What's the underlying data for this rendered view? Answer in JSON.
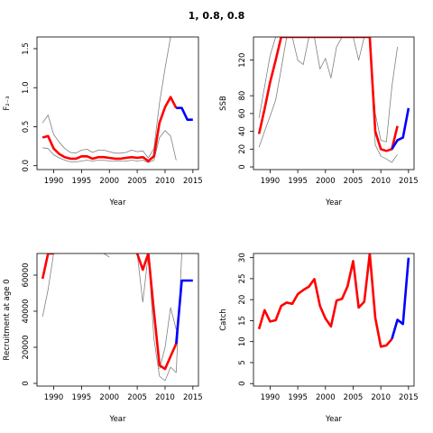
{
  "figure_title": "1, 0.8, 0.8",
  "colors": {
    "primary": "#ff0000",
    "projection": "#0000ff",
    "bounds": "#808080",
    "axis": "#000000"
  },
  "chart_data": [
    {
      "type": "line",
      "xlabel": "Year",
      "ylabel": "F₂₋₃",
      "xlim": [
        1987,
        2016
      ],
      "ylim": [
        -0.05,
        1.65
      ],
      "xticks": [
        1990,
        1995,
        2000,
        2005,
        2010,
        2015
      ],
      "yticks": [
        0.0,
        0.5,
        1.0,
        1.5
      ],
      "ytick_labels": [
        "0.0",
        "0.5",
        "1.0",
        "1.5"
      ],
      "series": [
        {
          "role": "upper",
          "color": "#808080",
          "x": [
            1988,
            1989,
            1990,
            1991,
            1992,
            1993,
            1994,
            1995,
            1996,
            1997,
            1998,
            1999,
            2000,
            2001,
            2002,
            2003,
            2004,
            2005,
            2006,
            2007,
            2008,
            2009,
            2010,
            2011
          ],
          "y": [
            0.55,
            0.65,
            0.4,
            0.3,
            0.22,
            0.17,
            0.16,
            0.2,
            0.21,
            0.17,
            0.2,
            0.2,
            0.18,
            0.16,
            0.16,
            0.17,
            0.2,
            0.18,
            0.19,
            0.1,
            0.22,
            0.8,
            1.25,
            1.65
          ]
        },
        {
          "role": "lower",
          "color": "#808080",
          "x": [
            1988,
            1989,
            1990,
            1991,
            1992,
            1993,
            1994,
            1995,
            1996,
            1997,
            1998,
            1999,
            2000,
            2001,
            2002,
            2003,
            2004,
            2005,
            2006,
            2007,
            2008,
            2009,
            2010,
            2011,
            2012
          ],
          "y": [
            0.23,
            0.22,
            0.14,
            0.1,
            0.07,
            0.05,
            0.05,
            0.06,
            0.07,
            0.06,
            0.07,
            0.07,
            0.06,
            0.06,
            0.06,
            0.06,
            0.07,
            0.06,
            0.07,
            0.04,
            0.07,
            0.36,
            0.45,
            0.38,
            0.07
          ]
        },
        {
          "role": "estimate",
          "color": "#ff0000",
          "x": [
            1988,
            1989,
            1990,
            1991,
            1992,
            1993,
            1994,
            1995,
            1996,
            1997,
            1998,
            1999,
            2000,
            2001,
            2002,
            2003,
            2004,
            2005,
            2006,
            2007,
            2008,
            2009,
            2010,
            2011,
            2012
          ],
          "y": [
            0.36,
            0.38,
            0.22,
            0.15,
            0.11,
            0.09,
            0.09,
            0.12,
            0.12,
            0.09,
            0.11,
            0.11,
            0.1,
            0.09,
            0.09,
            0.1,
            0.11,
            0.1,
            0.11,
            0.06,
            0.12,
            0.55,
            0.75,
            0.88,
            0.74
          ]
        },
        {
          "role": "projection",
          "color": "#0000ff",
          "x": [
            2012,
            2013,
            2014,
            2015
          ],
          "y": [
            0.74,
            0.74,
            0.59,
            0.59
          ]
        }
      ]
    },
    {
      "type": "line",
      "xlabel": "Year",
      "ylabel": "SSB",
      "xlim": [
        1987,
        2016
      ],
      "ylim": [
        -3,
        146
      ],
      "xticks": [
        1990,
        1995,
        2000,
        2005,
        2010,
        2015
      ],
      "yticks": [
        0,
        20,
        40,
        60,
        80,
        120
      ],
      "ytick_labels": [
        "0",
        "20",
        "40",
        "60",
        "80",
        "120"
      ],
      "series": [
        {
          "role": "upper",
          "color": "#808080",
          "x": [
            1988,
            1989,
            1990,
            1991,
            1992,
            1993,
            1994,
            1995,
            1996,
            1997,
            1998,
            1999,
            2000,
            2001,
            2002,
            2003,
            2004,
            2005,
            2006,
            2007,
            2008,
            2009,
            2010,
            2011,
            2012,
            2013
          ],
          "y": [
            55,
            90,
            125,
            146,
            146,
            146,
            146,
            120,
            115,
            146,
            146,
            110,
            122,
            100,
            135,
            146,
            146,
            146,
            120,
            146,
            146,
            60,
            30,
            28,
            90,
            135
          ]
        },
        {
          "role": "lower",
          "color": "#808080",
          "x": [
            1988,
            1989,
            1990,
            1991,
            1992,
            1993,
            1994,
            1995,
            1996,
            1997,
            1998,
            1999,
            2000,
            2001,
            2002,
            2003,
            2004,
            2005,
            2006,
            2007,
            2008,
            2009,
            2010,
            2011,
            2012,
            2013
          ],
          "y": [
            22,
            40,
            57,
            75,
            110,
            146,
            146,
            146,
            146,
            146,
            146,
            146,
            146,
            146,
            146,
            146,
            146,
            146,
            146,
            146,
            146,
            25,
            12,
            9,
            5,
            14
          ]
        },
        {
          "role": "estimate",
          "color": "#ff0000",
          "x": [
            1988,
            1989,
            1990,
            1991,
            1992,
            1993,
            1994,
            1995,
            1996,
            1997,
            1998,
            1999,
            2000,
            2001,
            2002,
            2003,
            2004,
            2005,
            2006,
            2007,
            2008,
            2009,
            2010,
            2011,
            2012,
            2013
          ],
          "y": [
            37,
            65,
            95,
            120,
            146,
            146,
            146,
            146,
            146,
            146,
            146,
            146,
            146,
            146,
            146,
            146,
            146,
            146,
            146,
            146,
            146,
            40,
            20,
            18,
            20,
            46
          ]
        },
        {
          "role": "projection",
          "color": "#0000ff",
          "x": [
            2012,
            2013,
            2014,
            2015
          ],
          "y": [
            20,
            30,
            33,
            66
          ]
        }
      ]
    },
    {
      "type": "line",
      "xlabel": "Year",
      "ylabel": "Recruitment at age 0",
      "xlim": [
        1987,
        2016
      ],
      "ylim": [
        -1500,
        72000
      ],
      "xticks": [
        1990,
        1995,
        2000,
        2005,
        2010,
        2015
      ],
      "yticks": [
        0,
        20000,
        40000,
        60000
      ],
      "ytick_labels": [
        "0",
        "20000",
        "40000",
        "60000"
      ],
      "series": [
        {
          "role": "upper",
          "color": "#808080",
          "x": [
            1999,
            2000
          ],
          "y": [
            72000,
            70000
          ]
        },
        {
          "role": "lower",
          "color": "#808080",
          "x": [
            1988,
            1989,
            1990,
            1991
          ],
          "y": [
            37000,
            52000,
            72000,
            72000
          ]
        },
        {
          "role": "lower",
          "color": "#808080",
          "x": [
            2005,
            2006,
            2007,
            2008,
            2009,
            2010,
            2011,
            2012,
            2013
          ],
          "y": [
            72000,
            45000,
            72000,
            25000,
            4000,
            1500,
            9000,
            6000,
            72000
          ]
        },
        {
          "role": "upper",
          "color": "#808080",
          "x": [
            2009,
            2010,
            2011,
            2012
          ],
          "y": [
            8000,
            20000,
            42000,
            30000
          ]
        },
        {
          "role": "estimate",
          "color": "#ff0000",
          "x": [
            1988,
            1989,
            1990
          ],
          "y": [
            58000,
            72000,
            72000
          ]
        },
        {
          "role": "estimate",
          "color": "#ff0000",
          "x": [
            2005,
            2006,
            2007,
            2008,
            2009,
            2010,
            2011,
            2012
          ],
          "y": [
            72000,
            63000,
            72000,
            40000,
            10000,
            8000,
            15000,
            22000
          ]
        },
        {
          "role": "projection",
          "color": "#0000ff",
          "x": [
            2012,
            2013,
            2014,
            2015
          ],
          "y": [
            22000,
            57000,
            57000,
            57000
          ]
        }
      ]
    },
    {
      "type": "line",
      "xlabel": "Year",
      "ylabel": "Catch",
      "xlim": [
        1987,
        2016
      ],
      "ylim": [
        -0.6,
        31
      ],
      "xticks": [
        1990,
        1995,
        2000,
        2005,
        2010,
        2015
      ],
      "yticks": [
        0,
        5,
        10,
        15,
        20,
        25,
        30
      ],
      "ytick_labels": [
        "0",
        "5",
        "10",
        "15",
        "20",
        "25",
        "30"
      ],
      "series": [
        {
          "role": "estimate",
          "color": "#ff0000",
          "x": [
            1988,
            1989,
            1990,
            1991,
            1992,
            1993,
            1994,
            1995,
            1996,
            1997,
            1998,
            1999,
            2000,
            2001,
            2002,
            2003,
            2004,
            2005,
            2006,
            2007,
            2008,
            2009,
            2010,
            2011,
            2012
          ],
          "y": [
            13,
            17.5,
            14.8,
            15.1,
            18.5,
            19.3,
            19,
            21.3,
            22.3,
            23.1,
            24.9,
            18.5,
            15.5,
            13.6,
            19.8,
            20.2,
            23.2,
            29.2,
            18.1,
            19.5,
            31,
            15.7,
            8.8,
            9.1,
            10.6
          ]
        },
        {
          "role": "projection",
          "color": "#0000ff",
          "x": [
            2012,
            2013,
            2014,
            2015
          ],
          "y": [
            10.6,
            15.2,
            14.2,
            30
          ]
        }
      ]
    }
  ]
}
